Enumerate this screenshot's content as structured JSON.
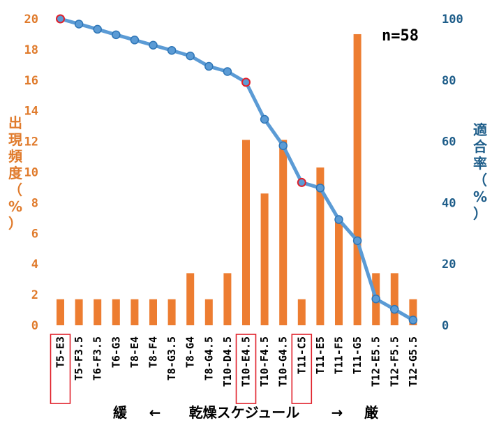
{
  "chart_data": {
    "type": "bar+line",
    "annotation": "n=58",
    "categories": [
      "T5-E3",
      "T5-F3.5",
      "T6-F3.5",
      "T6-G3",
      "T8-E4",
      "T8-F4",
      "T8-G3.5",
      "T8-G4",
      "T8-G4.5",
      "T10-D4.5",
      "T10-E4.5",
      "T10-F4.5",
      "T10-G4.5",
      "T11-C5",
      "T11-E5",
      "T11-F5",
      "T11-G5",
      "T12-E5.5",
      "T12-F5.5",
      "T12-G5.5"
    ],
    "highlighted_categories": [
      "T5-E3",
      "T10-E4.5",
      "T11-C5"
    ],
    "bar_series": {
      "name": "出現頻度",
      "axis": "left",
      "color": "#ed7d31",
      "values": [
        1.7,
        1.7,
        1.7,
        1.7,
        1.7,
        1.7,
        1.7,
        3.4,
        1.7,
        3.4,
        12.1,
        8.6,
        12.1,
        1.7,
        10.3,
        6.9,
        19.0,
        3.4,
        3.4,
        1.7
      ]
    },
    "line_series": {
      "name": "適合率",
      "axis": "right",
      "color": "#5b9bd5",
      "marker_color": "#2e75b6",
      "highlight_marker_color": "#e0202a",
      "values": [
        100,
        98.3,
        96.6,
        94.8,
        93.1,
        91.4,
        89.7,
        87.9,
        84.5,
        82.8,
        79.3,
        67.2,
        58.6,
        46.6,
        44.8,
        34.5,
        27.6,
        8.6,
        5.2,
        1.7
      ]
    },
    "left_axis": {
      "label": "出現頻度（%）",
      "ylim": [
        0,
        20
      ],
      "ticks": [
        "0",
        "2",
        "4",
        "6",
        "8",
        "10",
        "12",
        "14",
        "16",
        "18",
        "20"
      ]
    },
    "right_axis": {
      "label": "適合率（%）",
      "ylim": [
        0,
        100
      ],
      "ticks": [
        "0",
        "20",
        "40",
        "60",
        "80",
        "100"
      ]
    },
    "x_axis": {
      "left_text": "緩",
      "left_arrow": "←",
      "title": "乾燥スケジュール",
      "right_arrow": "→",
      "right_text": "厳"
    },
    "grid": false,
    "legend": "none"
  }
}
